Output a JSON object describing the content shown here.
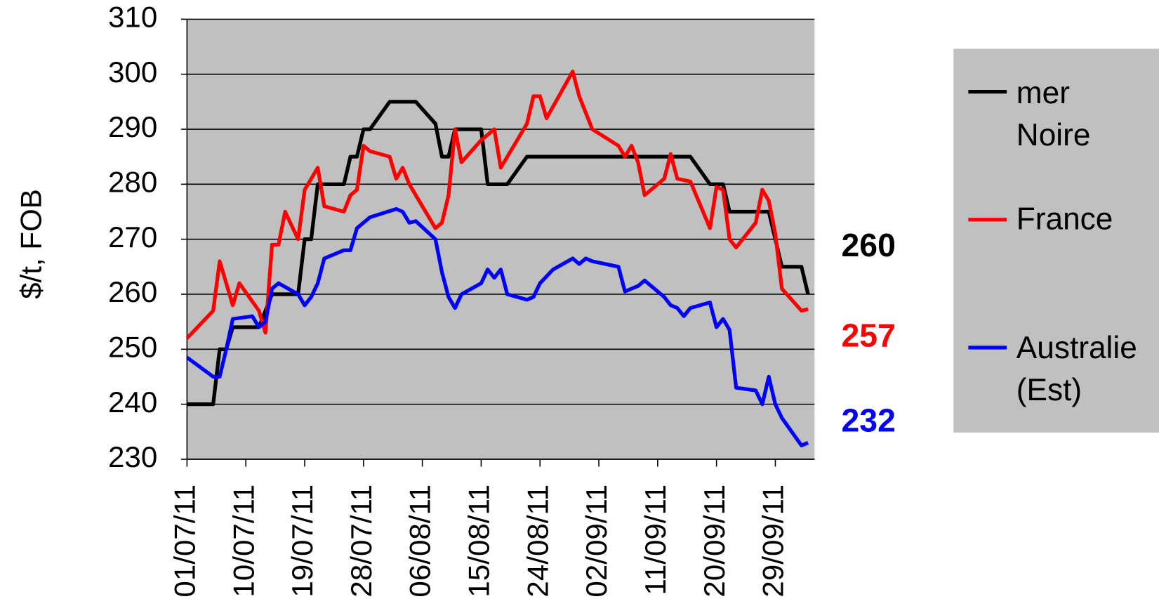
{
  "chart_data": {
    "type": "line",
    "y_label": "$/t, FOB",
    "xlim": [
      "01/07/11",
      "05/10/11"
    ],
    "xticks": [
      "01/07/11",
      "10/07/11",
      "19/07/11",
      "28/07/11",
      "06/08/11",
      "15/08/11",
      "24/08/11",
      "02/09/11",
      "11/09/11",
      "20/09/11",
      "29/09/11"
    ],
    "ylim": [
      230,
      310
    ],
    "yticks": [
      230,
      240,
      250,
      260,
      270,
      280,
      290,
      300,
      310
    ],
    "grid": true,
    "legend": "right",
    "series": [
      {
        "name": "mer Noire",
        "color": "#000000",
        "end_label": "260",
        "x": [
          "01/07/11",
          "05/07/11",
          "06/07/11",
          "07/07/11",
          "08/07/11",
          "12/07/11",
          "14/07/11",
          "18/07/11",
          "19/07/11",
          "20/07/11",
          "21/07/11",
          "25/07/11",
          "26/07/11",
          "27/07/11",
          "28/07/11",
          "29/07/11",
          "01/08/11",
          "05/08/11",
          "08/08/11",
          "09/08/11",
          "10/08/11",
          "11/08/11",
          "15/08/11",
          "16/08/11",
          "19/08/11",
          "22/08/11",
          "16/09/11",
          "19/09/11",
          "21/09/11",
          "22/09/11",
          "28/09/11",
          "30/09/11",
          "03/10/11",
          "04/10/11"
        ],
        "values": [
          240,
          240,
          250,
          250,
          254,
          254,
          260,
          260,
          270,
          270,
          280,
          280,
          285,
          285,
          290,
          290,
          295,
          295,
          291,
          285,
          285,
          290,
          290,
          280,
          280,
          285,
          285,
          280,
          280,
          275,
          275,
          265,
          265,
          260
        ]
      },
      {
        "name": "France",
        "color": "#ff0000",
        "end_label": "257",
        "x": [
          "01/07/11",
          "05/07/11",
          "06/07/11",
          "07/07/11",
          "08/07/11",
          "09/07/11",
          "12/07/11",
          "13/07/11",
          "14/07/11",
          "15/07/11",
          "16/07/11",
          "18/07/11",
          "19/07/11",
          "21/07/11",
          "22/07/11",
          "25/07/11",
          "26/07/11",
          "27/07/11",
          "28/07/11",
          "29/07/11",
          "01/08/11",
          "02/08/11",
          "03/08/11",
          "04/08/11",
          "05/08/11",
          "08/08/11",
          "09/08/11",
          "10/08/11",
          "11/08/11",
          "12/08/11",
          "15/08/11",
          "17/08/11",
          "18/08/11",
          "22/08/11",
          "23/08/11",
          "24/08/11",
          "25/08/11",
          "29/08/11",
          "30/08/11",
          "01/09/11",
          "05/09/11",
          "06/09/11",
          "07/09/11",
          "08/09/11",
          "09/09/11",
          "12/09/11",
          "13/09/11",
          "14/09/11",
          "16/09/11",
          "19/09/11",
          "20/09/11",
          "21/09/11",
          "22/09/11",
          "23/09/11",
          "26/09/11",
          "27/09/11",
          "28/09/11",
          "29/09/11",
          "30/09/11",
          "03/10/11",
          "04/10/11"
        ],
        "values": [
          252,
          257,
          266,
          262,
          258,
          262,
          257,
          253,
          269,
          269,
          275,
          270,
          279,
          283,
          276,
          275,
          278,
          279,
          287,
          286,
          285,
          281,
          283,
          280,
          278,
          272,
          273,
          278,
          290,
          284,
          288,
          290,
          283,
          291,
          296,
          296,
          292,
          300.5,
          296,
          290,
          287,
          285,
          287,
          284,
          278,
          281,
          285.5,
          281,
          280.5,
          272,
          279.5,
          279,
          270,
          268.5,
          273,
          279,
          277,
          271,
          261,
          257,
          257.3
        ]
      },
      {
        "name": "Australie (Est)",
        "color": "#0000ff",
        "end_label": "232",
        "x": [
          "01/07/11",
          "05/07/11",
          "06/07/11",
          "07/07/11",
          "08/07/11",
          "11/07/11",
          "12/07/11",
          "13/07/11",
          "14/07/11",
          "15/07/11",
          "18/07/11",
          "19/07/11",
          "20/07/11",
          "21/07/11",
          "22/07/11",
          "25/07/11",
          "26/07/11",
          "27/07/11",
          "29/07/11",
          "02/08/11",
          "03/08/11",
          "04/08/11",
          "05/08/11",
          "08/08/11",
          "09/08/11",
          "10/08/11",
          "11/08/11",
          "12/08/11",
          "15/08/11",
          "16/08/11",
          "17/08/11",
          "18/08/11",
          "19/08/11",
          "22/08/11",
          "23/08/11",
          "24/08/11",
          "26/08/11",
          "29/08/11",
          "30/08/11",
          "31/08/11",
          "01/09/11",
          "05/09/11",
          "06/09/11",
          "08/09/11",
          "09/09/11",
          "12/09/11",
          "13/09/11",
          "14/09/11",
          "15/09/11",
          "16/09/11",
          "19/09/11",
          "20/09/11",
          "21/09/11",
          "22/09/11",
          "23/09/11",
          "26/09/11",
          "27/09/11",
          "28/09/11",
          "29/09/11",
          "30/09/11",
          "03/10/11",
          "04/10/11"
        ],
        "values": [
          248.5,
          245,
          245,
          250,
          255.5,
          256,
          254,
          255,
          261,
          262,
          260,
          258,
          259.5,
          262,
          266.5,
          268,
          268,
          272,
          274,
          275.5,
          275,
          273,
          273.3,
          270,
          264,
          259.5,
          257.5,
          260,
          262,
          264.5,
          263,
          264.5,
          260,
          259,
          259.5,
          262,
          264.5,
          266.5,
          265.5,
          266.5,
          266,
          265,
          260.5,
          261.5,
          262.5,
          259.5,
          258,
          257.5,
          256,
          257.5,
          258.5,
          254,
          255.5,
          253.5,
          243,
          242.5,
          240,
          245,
          240,
          237.5,
          232.5,
          233
        ]
      }
    ]
  }
}
